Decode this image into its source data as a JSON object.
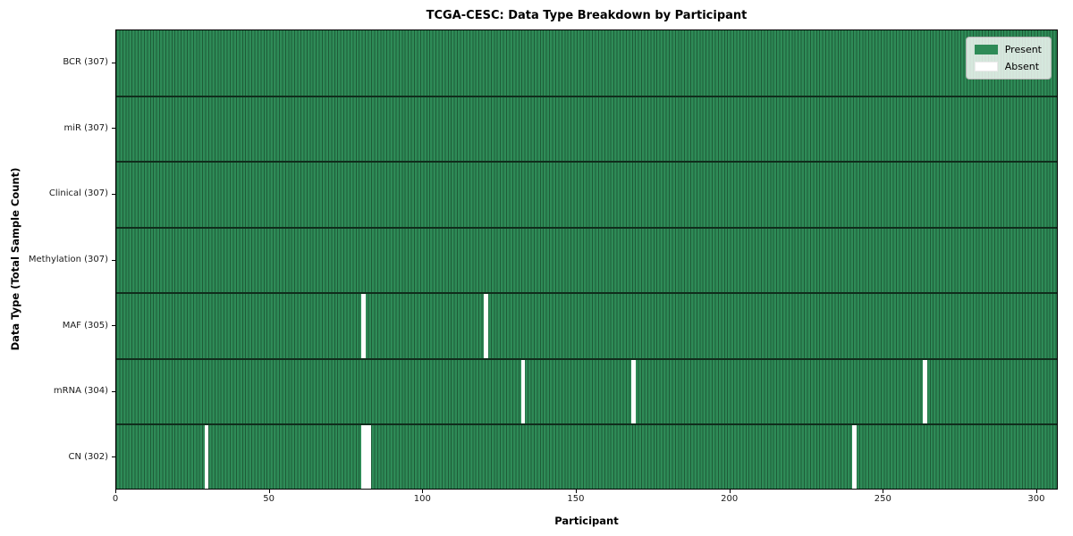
{
  "chart_data": {
    "type": "heatmap",
    "title": "TCGA-CESC: Data Type Breakdown by Participant",
    "xlabel": "Participant",
    "ylabel": "Data Type (Total Sample Count)",
    "n_participants": 307,
    "xlim": [
      0,
      307
    ],
    "x_ticks": [
      0,
      50,
      100,
      150,
      200,
      250,
      300
    ],
    "grid": false,
    "legend_position": "upper right",
    "legend_entries": [
      {
        "label": "Present",
        "key": "present"
      },
      {
        "label": "Absent",
        "key": "absent"
      }
    ],
    "rows": [
      {
        "id": "bcr",
        "label": "BCR (307)",
        "data_type": "BCR",
        "total": 307,
        "absent_participants": []
      },
      {
        "id": "mir",
        "label": "miR (307)",
        "data_type": "miR",
        "total": 307,
        "absent_participants": []
      },
      {
        "id": "clinical",
        "label": "Clinical (307)",
        "data_type": "Clinical",
        "total": 307,
        "absent_participants": []
      },
      {
        "id": "methylation",
        "label": "Methylation (307)",
        "data_type": "Methylation",
        "total": 307,
        "absent_participants": []
      },
      {
        "id": "maf",
        "label": "MAF (305)",
        "data_type": "MAF",
        "total": 305,
        "absent_participants": [
          80,
          120
        ]
      },
      {
        "id": "mrna",
        "label": "mRNA (304)",
        "data_type": "mRNA",
        "total": 304,
        "absent_participants": [
          132,
          168,
          263
        ]
      },
      {
        "id": "cn",
        "label": "CN (302)",
        "data_type": "CN",
        "total": 302,
        "absent_participants": [
          29,
          80,
          81,
          82,
          240
        ]
      }
    ],
    "colors": {
      "present": "#2e8b57",
      "absent": "#ffffff",
      "cell_edge": "#1e5c38",
      "row_divider": "#102d1c",
      "plot_border": "#000000"
    }
  }
}
